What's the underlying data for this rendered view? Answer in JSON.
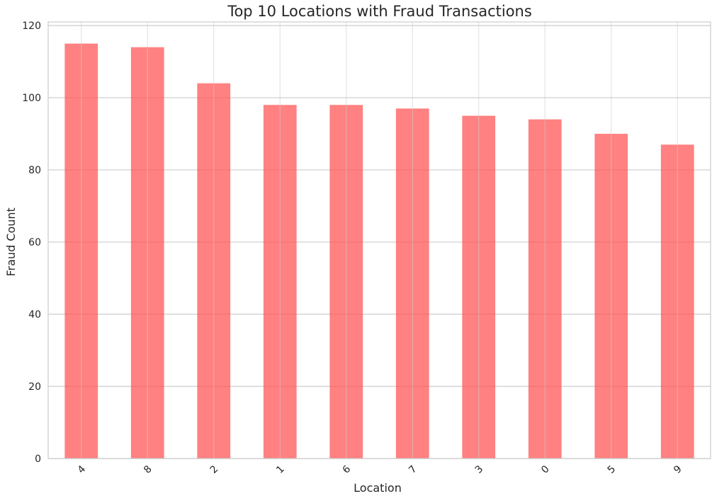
{
  "chart_data": {
    "type": "bar",
    "title": "Top 10 Locations with Fraud Transactions",
    "xlabel": "Location",
    "ylabel": "Fraud Count",
    "categories": [
      "4",
      "8",
      "2",
      "1",
      "6",
      "7",
      "3",
      "0",
      "5",
      "9"
    ],
    "values": [
      115,
      114,
      104,
      98,
      98,
      97,
      95,
      94,
      90,
      87
    ],
    "ylim": [
      0,
      121
    ],
    "yticks": [
      0,
      20,
      40,
      60,
      80,
      100,
      120
    ],
    "grid": true,
    "colors": {
      "bar": "#ff4c4c",
      "bar_opacity": 0.7,
      "grid": "#cccccc",
      "axes_edge": "#cccccc",
      "text": "#262626",
      "background": "#ffffff"
    }
  }
}
